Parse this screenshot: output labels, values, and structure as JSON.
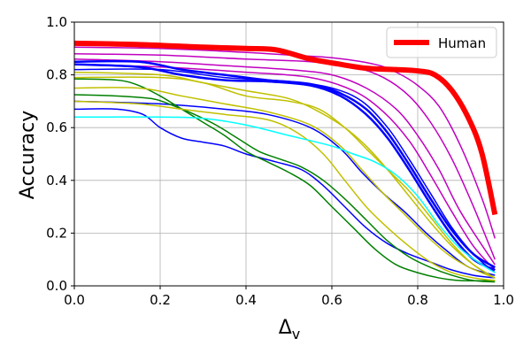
{
  "chart_data": {
    "type": "line",
    "title": "",
    "xlabel": "Δ",
    "xlabel_sub": "v",
    "ylabel": "Accuracy",
    "xlim": [
      0,
      1
    ],
    "ylim": [
      0,
      1
    ],
    "xticks": [
      "0.0",
      "0.2",
      "0.4",
      "0.6",
      "0.8",
      "1.0"
    ],
    "yticks": [
      "0.0",
      "0.2",
      "0.4",
      "0.6",
      "0.8",
      "1.0"
    ],
    "grid": true,
    "legend": {
      "position": "top-right",
      "entries": [
        {
          "name": "Human",
          "color": "#ff0000"
        }
      ]
    },
    "series": [
      {
        "name": "magenta-1",
        "color": "#c000c0",
        "width": 1.5,
        "points": [
          [
            0,
            0.905
          ],
          [
            0.2,
            0.9
          ],
          [
            0.4,
            0.885
          ],
          [
            0.5,
            0.875
          ],
          [
            0.6,
            0.865
          ],
          [
            0.7,
            0.84
          ],
          [
            0.75,
            0.81
          ],
          [
            0.8,
            0.76
          ],
          [
            0.85,
            0.68
          ],
          [
            0.9,
            0.53
          ],
          [
            0.95,
            0.33
          ],
          [
            0.98,
            0.18
          ]
        ]
      },
      {
        "name": "magenta-2",
        "color": "#c000c0",
        "width": 1.5,
        "points": [
          [
            0,
            0.88
          ],
          [
            0.2,
            0.875
          ],
          [
            0.4,
            0.86
          ],
          [
            0.55,
            0.85
          ],
          [
            0.65,
            0.83
          ],
          [
            0.72,
            0.79
          ],
          [
            0.78,
            0.72
          ],
          [
            0.83,
            0.62
          ],
          [
            0.88,
            0.48
          ],
          [
            0.93,
            0.3
          ],
          [
            0.98,
            0.1
          ]
        ]
      },
      {
        "name": "magenta-3",
        "color": "#c000c0",
        "width": 1.5,
        "points": [
          [
            0,
            0.86
          ],
          [
            0.2,
            0.85
          ],
          [
            0.35,
            0.835
          ],
          [
            0.5,
            0.82
          ],
          [
            0.6,
            0.8
          ],
          [
            0.68,
            0.75
          ],
          [
            0.75,
            0.67
          ],
          [
            0.8,
            0.57
          ],
          [
            0.85,
            0.44
          ],
          [
            0.9,
            0.28
          ],
          [
            0.98,
            0.08
          ]
        ]
      },
      {
        "name": "magenta-4",
        "color": "#c000c0",
        "width": 1.5,
        "points": [
          [
            0,
            0.84
          ],
          [
            0.2,
            0.83
          ],
          [
            0.4,
            0.81
          ],
          [
            0.55,
            0.79
          ],
          [
            0.65,
            0.74
          ],
          [
            0.72,
            0.66
          ],
          [
            0.78,
            0.55
          ],
          [
            0.83,
            0.42
          ],
          [
            0.88,
            0.28
          ],
          [
            0.93,
            0.15
          ],
          [
            0.98,
            0.06
          ]
        ]
      },
      {
        "name": "blue-1",
        "color": "#0000ff",
        "width": 2.5,
        "points": [
          [
            0,
            0.85
          ],
          [
            0.15,
            0.85
          ],
          [
            0.25,
            0.82
          ],
          [
            0.35,
            0.8
          ],
          [
            0.45,
            0.78
          ],
          [
            0.55,
            0.765
          ],
          [
            0.62,
            0.73
          ],
          [
            0.68,
            0.67
          ],
          [
            0.73,
            0.58
          ],
          [
            0.78,
            0.46
          ],
          [
            0.83,
            0.33
          ],
          [
            0.88,
            0.21
          ],
          [
            0.93,
            0.12
          ],
          [
            0.98,
            0.07
          ]
        ]
      },
      {
        "name": "blue-2",
        "color": "#0000ff",
        "width": 2.5,
        "points": [
          [
            0,
            0.84
          ],
          [
            0.15,
            0.83
          ],
          [
            0.25,
            0.8
          ],
          [
            0.35,
            0.78
          ],
          [
            0.45,
            0.775
          ],
          [
            0.55,
            0.76
          ],
          [
            0.62,
            0.72
          ],
          [
            0.68,
            0.65
          ],
          [
            0.73,
            0.56
          ],
          [
            0.78,
            0.44
          ],
          [
            0.83,
            0.31
          ],
          [
            0.88,
            0.19
          ],
          [
            0.93,
            0.1
          ],
          [
            0.98,
            0.06
          ]
        ]
      },
      {
        "name": "blue-3",
        "color": "#0000ff",
        "width": 1.5,
        "points": [
          [
            0,
            0.82
          ],
          [
            0.2,
            0.82
          ],
          [
            0.35,
            0.79
          ],
          [
            0.5,
            0.775
          ],
          [
            0.6,
            0.75
          ],
          [
            0.67,
            0.7
          ],
          [
            0.73,
            0.6
          ],
          [
            0.78,
            0.48
          ],
          [
            0.83,
            0.35
          ],
          [
            0.88,
            0.22
          ],
          [
            0.93,
            0.12
          ],
          [
            0.98,
            0.05
          ]
        ]
      },
      {
        "name": "blue-4",
        "color": "#0000ff",
        "width": 1.5,
        "points": [
          [
            0,
            0.7
          ],
          [
            0.2,
            0.69
          ],
          [
            0.35,
            0.67
          ],
          [
            0.45,
            0.65
          ],
          [
            0.55,
            0.6
          ],
          [
            0.62,
            0.52
          ],
          [
            0.67,
            0.43
          ],
          [
            0.72,
            0.35
          ],
          [
            0.77,
            0.28
          ],
          [
            0.82,
            0.2
          ],
          [
            0.87,
            0.13
          ],
          [
            0.92,
            0.07
          ],
          [
            0.98,
            0.04
          ]
        ]
      },
      {
        "name": "blue-5",
        "color": "#0000ff",
        "width": 1.5,
        "points": [
          [
            0,
            0.67
          ],
          [
            0.1,
            0.67
          ],
          [
            0.16,
            0.65
          ],
          [
            0.2,
            0.6
          ],
          [
            0.25,
            0.56
          ],
          [
            0.3,
            0.545
          ],
          [
            0.35,
            0.53
          ],
          [
            0.4,
            0.5
          ],
          [
            0.47,
            0.47
          ],
          [
            0.53,
            0.44
          ],
          [
            0.58,
            0.38
          ],
          [
            0.63,
            0.3
          ],
          [
            0.68,
            0.22
          ],
          [
            0.73,
            0.16
          ],
          [
            0.78,
            0.12
          ],
          [
            0.83,
            0.09
          ],
          [
            0.88,
            0.06
          ],
          [
            0.93,
            0.04
          ],
          [
            0.98,
            0.03
          ]
        ]
      },
      {
        "name": "green-1",
        "color": "#008000",
        "width": 1.5,
        "points": [
          [
            0,
            0.785
          ],
          [
            0.1,
            0.78
          ],
          [
            0.15,
            0.76
          ],
          [
            0.2,
            0.72
          ],
          [
            0.25,
            0.67
          ],
          [
            0.3,
            0.62
          ],
          [
            0.35,
            0.57
          ],
          [
            0.4,
            0.51
          ],
          [
            0.45,
            0.47
          ],
          [
            0.5,
            0.43
          ],
          [
            0.55,
            0.38
          ],
          [
            0.6,
            0.3
          ],
          [
            0.65,
            0.22
          ],
          [
            0.7,
            0.14
          ],
          [
            0.75,
            0.08
          ],
          [
            0.8,
            0.05
          ],
          [
            0.85,
            0.03
          ],
          [
            0.9,
            0.02
          ],
          [
            0.98,
            0.02
          ]
        ]
      },
      {
        "name": "green-2",
        "color": "#008000",
        "width": 1.5,
        "points": [
          [
            0,
            0.725
          ],
          [
            0.1,
            0.72
          ],
          [
            0.18,
            0.71
          ],
          [
            0.22,
            0.69
          ],
          [
            0.28,
            0.65
          ],
          [
            0.33,
            0.61
          ],
          [
            0.38,
            0.56
          ],
          [
            0.43,
            0.51
          ],
          [
            0.48,
            0.48
          ],
          [
            0.53,
            0.45
          ],
          [
            0.58,
            0.4
          ],
          [
            0.63,
            0.33
          ],
          [
            0.68,
            0.25
          ],
          [
            0.73,
            0.17
          ],
          [
            0.78,
            0.11
          ],
          [
            0.83,
            0.07
          ],
          [
            0.88,
            0.04
          ],
          [
            0.93,
            0.02
          ],
          [
            0.98,
            0.015
          ]
        ]
      },
      {
        "name": "yellow-1",
        "color": "#c0c000",
        "width": 1.5,
        "points": [
          [
            0,
            0.79
          ],
          [
            0.2,
            0.79
          ],
          [
            0.3,
            0.77
          ],
          [
            0.4,
            0.72
          ],
          [
            0.5,
            0.7
          ],
          [
            0.57,
            0.67
          ],
          [
            0.63,
            0.6
          ],
          [
            0.68,
            0.52
          ],
          [
            0.73,
            0.44
          ],
          [
            0.78,
            0.36
          ],
          [
            0.83,
            0.26
          ],
          [
            0.88,
            0.16
          ],
          [
            0.93,
            0.08
          ],
          [
            0.98,
            0.03
          ]
        ]
      },
      {
        "name": "yellow-2",
        "color": "#c0c000",
        "width": 1.5,
        "points": [
          [
            0,
            0.81
          ],
          [
            0.2,
            0.8
          ],
          [
            0.3,
            0.77
          ],
          [
            0.4,
            0.74
          ],
          [
            0.5,
            0.71
          ],
          [
            0.57,
            0.66
          ],
          [
            0.63,
            0.6
          ],
          [
            0.68,
            0.53
          ],
          [
            0.73,
            0.44
          ],
          [
            0.78,
            0.34
          ],
          [
            0.83,
            0.24
          ],
          [
            0.88,
            0.15
          ],
          [
            0.93,
            0.08
          ],
          [
            0.98,
            0.03
          ]
        ]
      },
      {
        "name": "yellow-3",
        "color": "#c0c000",
        "width": 1.5,
        "points": [
          [
            0,
            0.75
          ],
          [
            0.15,
            0.75
          ],
          [
            0.25,
            0.72
          ],
          [
            0.35,
            0.69
          ],
          [
            0.45,
            0.66
          ],
          [
            0.55,
            0.61
          ],
          [
            0.62,
            0.53
          ],
          [
            0.67,
            0.44
          ],
          [
            0.72,
            0.35
          ],
          [
            0.77,
            0.27
          ],
          [
            0.82,
            0.19
          ],
          [
            0.87,
            0.12
          ],
          [
            0.92,
            0.07
          ],
          [
            0.98,
            0.03
          ]
        ]
      },
      {
        "name": "yellow-4",
        "color": "#c0c000",
        "width": 1.5,
        "points": [
          [
            0,
            0.7
          ],
          [
            0.15,
            0.69
          ],
          [
            0.25,
            0.67
          ],
          [
            0.35,
            0.65
          ],
          [
            0.45,
            0.63
          ],
          [
            0.52,
            0.58
          ],
          [
            0.58,
            0.5
          ],
          [
            0.63,
            0.4
          ],
          [
            0.68,
            0.3
          ],
          [
            0.73,
            0.22
          ],
          [
            0.78,
            0.15
          ],
          [
            0.83,
            0.09
          ],
          [
            0.88,
            0.05
          ],
          [
            0.93,
            0.03
          ],
          [
            0.98,
            0.02
          ]
        ]
      },
      {
        "name": "cyan",
        "color": "#00ffff",
        "width": 1.5,
        "points": [
          [
            0,
            0.64
          ],
          [
            0.2,
            0.64
          ],
          [
            0.3,
            0.635
          ],
          [
            0.4,
            0.61
          ],
          [
            0.5,
            0.57
          ],
          [
            0.6,
            0.53
          ],
          [
            0.65,
            0.5
          ],
          [
            0.7,
            0.47
          ],
          [
            0.75,
            0.42
          ],
          [
            0.8,
            0.34
          ],
          [
            0.85,
            0.23
          ],
          [
            0.9,
            0.14
          ],
          [
            0.95,
            0.08
          ],
          [
            0.98,
            0.05
          ]
        ]
      },
      {
        "name": "Human",
        "color": "#ff0000",
        "width": 6,
        "points": [
          [
            0,
            0.92
          ],
          [
            0.15,
            0.915
          ],
          [
            0.3,
            0.905
          ],
          [
            0.4,
            0.9
          ],
          [
            0.47,
            0.895
          ],
          [
            0.55,
            0.86
          ],
          [
            0.62,
            0.84
          ],
          [
            0.68,
            0.825
          ],
          [
            0.75,
            0.82
          ],
          [
            0.8,
            0.815
          ],
          [
            0.84,
            0.8
          ],
          [
            0.88,
            0.74
          ],
          [
            0.92,
            0.63
          ],
          [
            0.95,
            0.5
          ],
          [
            0.98,
            0.27
          ]
        ]
      }
    ]
  }
}
